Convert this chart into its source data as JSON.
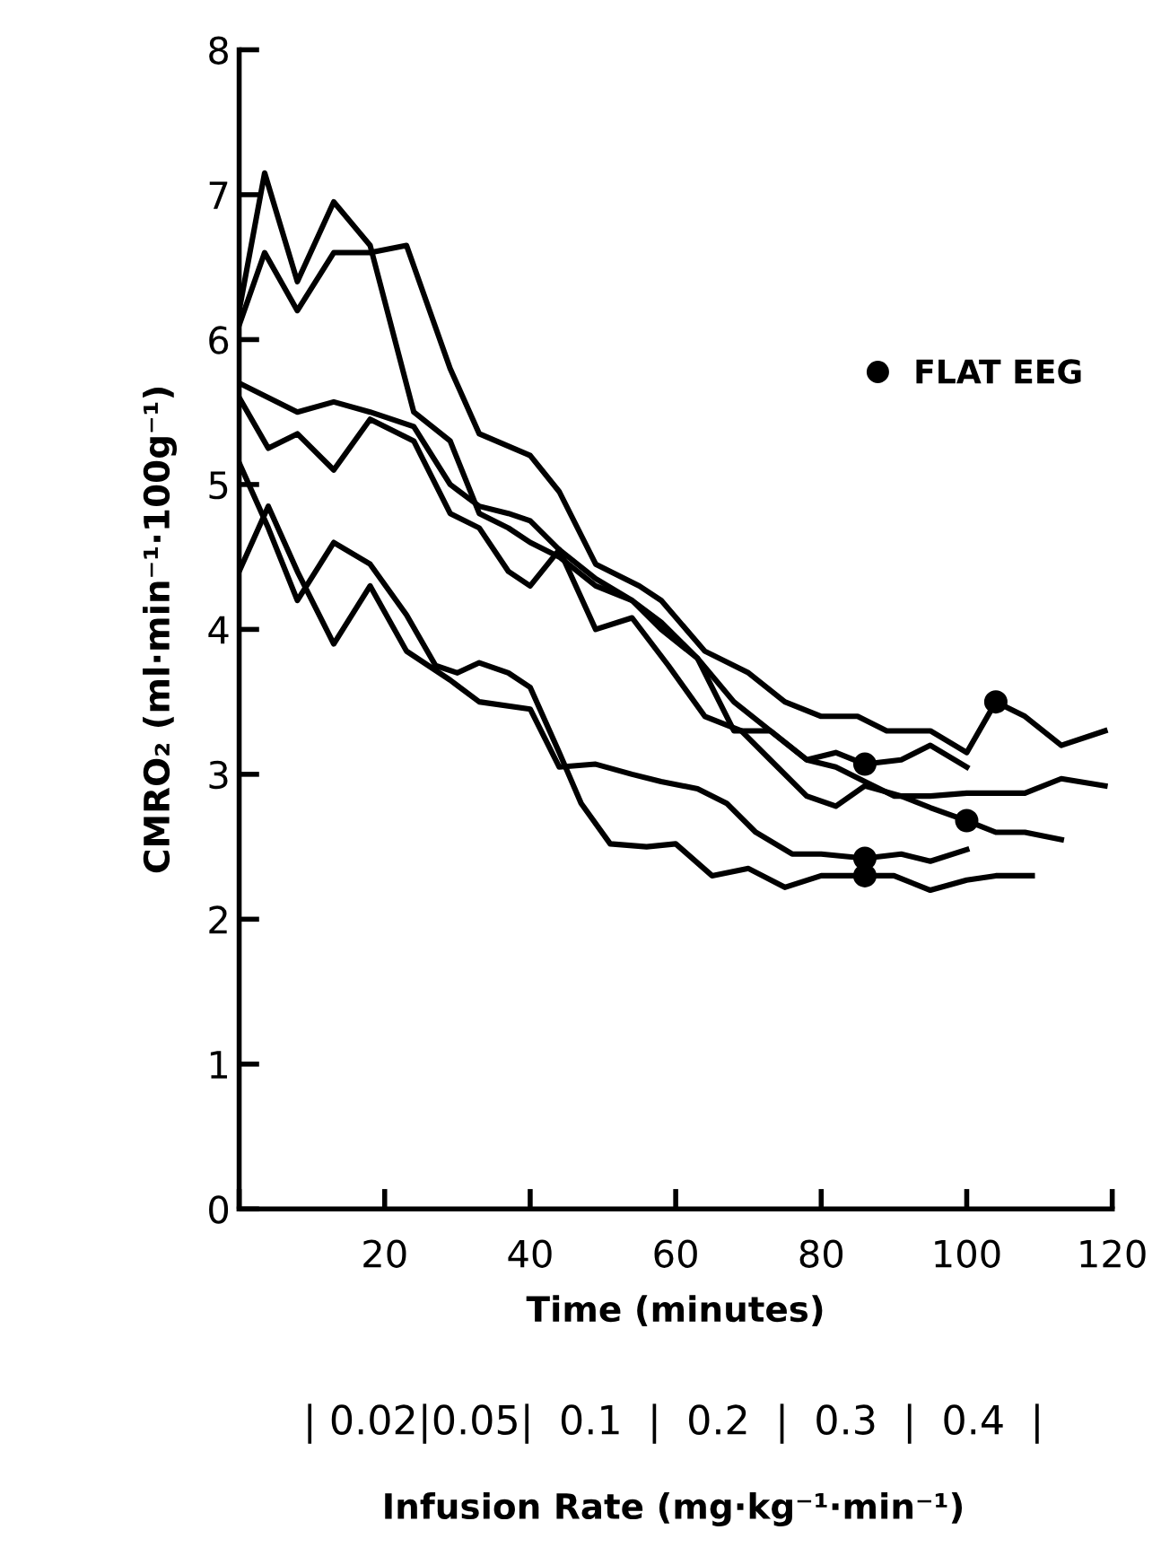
{
  "chart_data": {
    "type": "line",
    "xlabel": "Time (minutes)",
    "ylabel": "CMRO₂ (ml·min⁻¹·100g⁻¹)",
    "annotations": [
      "| 0.02|0.05|  0.1  |  0.2  |  0.3  |  0.4  |",
      "Infusion Rate (mg·kg⁻¹·min⁻¹)"
    ],
    "xlim": [
      0,
      120
    ],
    "xticks": [
      {
        "value": 0,
        "label": null
      },
      20,
      40,
      60,
      80,
      100,
      120
    ],
    "ylim": [
      0,
      8
    ],
    "yticks": [
      0,
      1,
      2,
      3,
      4,
      5,
      6,
      7,
      8
    ],
    "grid": false,
    "legend": "right",
    "line_style": "solid",
    "marker": "none",
    "series": [
      {
        "color": "#000000",
        "x": [
          0,
          3.5,
          8,
          13,
          18,
          24,
          29,
          33,
          37,
          40,
          44,
          49,
          54,
          58,
          63,
          68,
          73,
          78,
          82,
          86,
          91,
          95,
          100
        ],
        "values": [
          6.2,
          7.15,
          6.4,
          6.95,
          6.65,
          5.5,
          5.3,
          4.8,
          4.7,
          4.6,
          4.5,
          4.3,
          4.2,
          4.05,
          3.8,
          3.3,
          3.3,
          3.1,
          3.15,
          3.07,
          3.1,
          3.2,
          3.05
        ]
      },
      {
        "color": "#000000",
        "x": [
          0,
          3.5,
          8,
          13,
          18,
          23,
          29,
          33,
          40,
          44,
          49,
          55,
          58,
          64,
          70,
          75,
          80,
          85,
          89,
          95,
          100,
          104,
          108,
          113,
          119
        ],
        "values": [
          6.1,
          6.6,
          6.2,
          6.6,
          6.6,
          6.65,
          5.8,
          5.35,
          5.2,
          4.95,
          4.45,
          4.3,
          4.2,
          3.85,
          3.7,
          3.5,
          3.4,
          3.4,
          3.3,
          3.3,
          3.15,
          3.5,
          3.4,
          3.2,
          3.3
        ]
      },
      {
        "color": "#000000",
        "x": [
          0,
          8,
          13,
          18,
          24,
          29,
          33,
          37,
          40,
          44,
          49,
          54,
          58,
          63,
          68,
          73,
          78,
          82,
          86,
          90,
          95,
          100,
          108,
          113,
          119
        ],
        "values": [
          5.7,
          5.5,
          5.57,
          5.5,
          5.4,
          5.0,
          4.85,
          4.8,
          4.75,
          4.55,
          4.35,
          4.2,
          4.0,
          3.8,
          3.5,
          3.3,
          3.1,
          3.05,
          2.95,
          2.85,
          2.85,
          2.87,
          2.87,
          2.97,
          2.92
        ]
      },
      {
        "color": "#000000",
        "x": [
          0,
          4,
          8,
          13,
          18,
          24,
          29,
          33,
          37,
          40,
          44,
          49,
          54,
          59,
          64,
          69,
          73,
          78,
          82,
          86,
          91,
          95,
          100,
          104,
          108,
          113
        ],
        "values": [
          5.6,
          5.25,
          5.35,
          5.1,
          5.45,
          5.3,
          4.8,
          4.7,
          4.4,
          4.3,
          4.55,
          4.0,
          4.08,
          3.75,
          3.4,
          3.3,
          3.1,
          2.85,
          2.78,
          2.92,
          2.85,
          2.77,
          2.68,
          2.6,
          2.6,
          2.55
        ]
      },
      {
        "color": "#000000",
        "x": [
          0,
          4,
          8,
          13,
          18,
          23,
          27,
          30,
          33,
          37,
          40,
          44,
          47,
          51,
          56,
          60,
          65,
          70,
          75,
          80,
          86,
          90,
          95,
          100,
          104,
          109
        ],
        "values": [
          5.15,
          4.7,
          4.2,
          4.6,
          4.45,
          4.1,
          3.75,
          3.7,
          3.77,
          3.7,
          3.6,
          3.15,
          2.8,
          2.52,
          2.5,
          2.52,
          2.3,
          2.35,
          2.22,
          2.3,
          2.3,
          2.3,
          2.2,
          2.27,
          2.3,
          2.3
        ]
      },
      {
        "color": "#000000",
        "x": [
          0,
          4,
          8,
          13,
          18,
          23,
          29,
          33,
          40,
          44,
          49,
          54,
          58,
          63,
          67,
          71,
          76,
          80,
          86,
          91,
          95,
          100
        ],
        "values": [
          4.4,
          4.85,
          4.4,
          3.9,
          4.3,
          3.85,
          3.65,
          3.5,
          3.45,
          3.05,
          3.07,
          3.0,
          2.95,
          2.9,
          2.8,
          2.6,
          2.45,
          2.45,
          2.42,
          2.45,
          2.4,
          2.48
        ]
      },
      {
        "type": "scatter",
        "name": "FLAT EEG",
        "color": "#000000",
        "marker": "circle",
        "x": [
          86,
          104,
          100,
          86,
          86
        ],
        "values": [
          3.07,
          3.5,
          2.68,
          2.42,
          2.3
        ]
      }
    ]
  }
}
